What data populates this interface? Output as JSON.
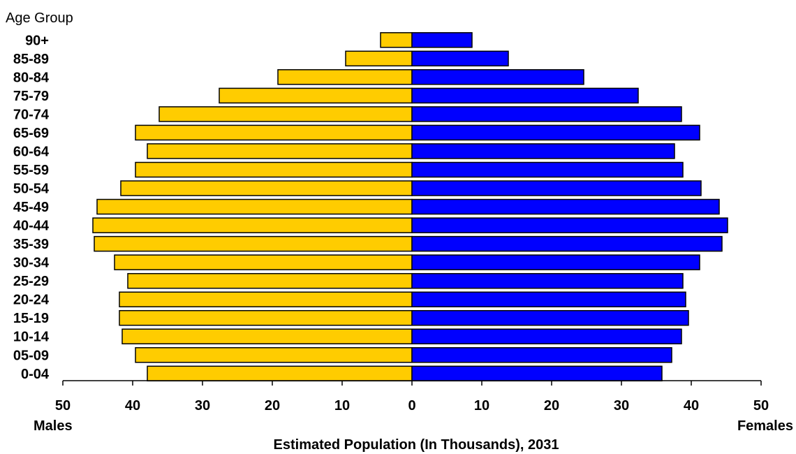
{
  "chart_data": {
    "type": "bar",
    "orientation": "horizontal",
    "layout": "population-pyramid",
    "y_axis_title": "Age Group",
    "xlabel": "Estimated Population (In Thousands), 2031",
    "left_label": "Males",
    "right_label": "Females",
    "xlim": [
      -50,
      50
    ],
    "x_ticks": [
      "50",
      "40",
      "30",
      "20",
      "10",
      "0",
      "10",
      "20",
      "30",
      "40",
      "50"
    ],
    "categories": [
      "90+",
      "85-89",
      "80-84",
      "75-79",
      "70-74",
      "65-69",
      "60-64",
      "55-59",
      "50-54",
      "45-49",
      "40-44",
      "35-39",
      "30-34",
      "25-29",
      "20-24",
      "15-19",
      "10-14",
      "05-09",
      "0-04"
    ],
    "series": [
      {
        "name": "Males",
        "color": "#ffcc00",
        "values": [
          4.5,
          9.5,
          19.2,
          27.6,
          36.2,
          39.6,
          37.9,
          39.6,
          41.7,
          45.1,
          45.7,
          45.5,
          42.6,
          40.7,
          41.9,
          41.9,
          41.5,
          39.6,
          37.9
        ]
      },
      {
        "name": "Females",
        "color": "#0000ff",
        "values": [
          8.6,
          13.8,
          24.6,
          32.4,
          38.6,
          41.2,
          37.6,
          38.8,
          41.4,
          44.0,
          45.2,
          44.4,
          41.2,
          38.8,
          39.2,
          39.6,
          38.6,
          37.2,
          35.8
        ]
      }
    ],
    "grid": false,
    "legend": "none"
  }
}
